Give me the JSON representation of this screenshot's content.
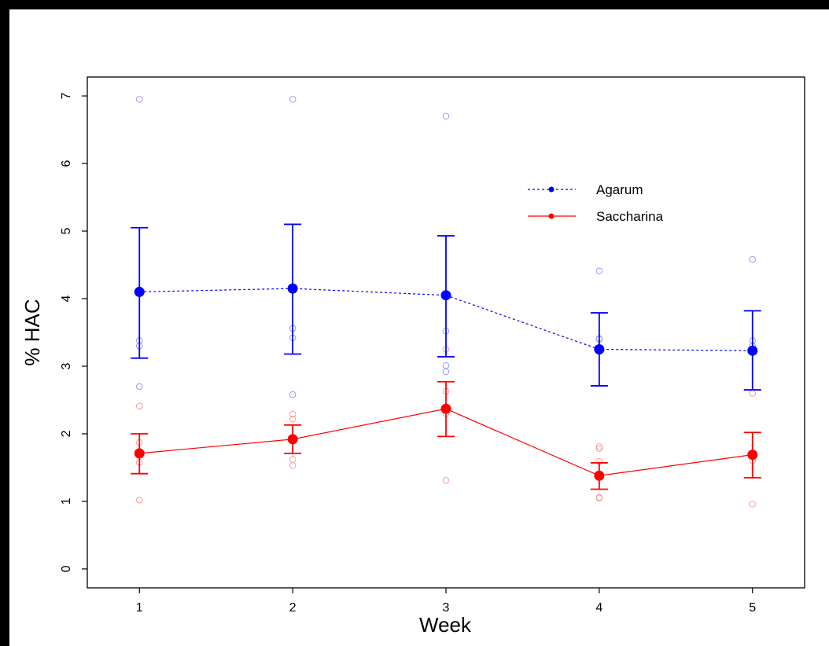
{
  "chart_data": {
    "type": "line",
    "title": "",
    "xlabel": "Week",
    "ylabel": "% HAC",
    "x_ticks": [
      "1",
      "2",
      "3",
      "4",
      "5"
    ],
    "y_ticks": [
      "0",
      "1",
      "2",
      "3",
      "4",
      "5",
      "6",
      "7"
    ],
    "xlim": [
      0.66,
      5.34
    ],
    "ylim": [
      -0.28,
      7.28
    ],
    "legend_position": "top-right",
    "series": [
      {
        "name": "Agarum",
        "color": "#0000ff",
        "point_color": "#9999ff",
        "line_style": "dashed",
        "x": [
          1,
          2,
          3,
          4,
          5
        ],
        "mean": [
          4.1,
          4.15,
          4.05,
          3.25,
          3.23
        ],
        "err_low": [
          3.12,
          3.18,
          3.14,
          2.71,
          2.65
        ],
        "err_high": [
          5.05,
          5.1,
          4.93,
          3.79,
          3.82
        ],
        "points": [
          [
            1,
            6.95
          ],
          [
            1,
            3.38
          ],
          [
            1,
            3.3
          ],
          [
            1,
            2.7
          ],
          [
            2,
            6.95
          ],
          [
            2,
            3.56
          ],
          [
            2,
            3.42
          ],
          [
            2,
            2.58
          ],
          [
            3,
            6.7
          ],
          [
            3,
            3.52
          ],
          [
            3,
            3.01
          ],
          [
            3,
            2.92
          ],
          [
            4,
            4.41
          ],
          [
            4,
            3.41
          ],
          [
            4,
            3.4
          ],
          [
            4,
            3.22
          ],
          [
            5,
            4.58
          ],
          [
            5,
            3.38
          ],
          [
            5,
            3.3
          ],
          [
            5,
            3.24
          ]
        ]
      },
      {
        "name": "Saccharina",
        "color": "#ff0000",
        "point_color": "#ff9999",
        "line_style": "solid",
        "x": [
          1,
          2,
          3,
          4,
          5
        ],
        "mean": [
          1.71,
          1.92,
          2.37,
          1.38,
          1.69
        ],
        "err_low": [
          1.41,
          1.71,
          1.96,
          1.18,
          1.35
        ],
        "err_high": [
          2.0,
          2.13,
          2.77,
          1.57,
          2.02
        ],
        "points": [
          [
            1,
            2.41
          ],
          [
            1,
            1.87
          ],
          [
            1,
            1.58
          ],
          [
            1,
            1.02
          ],
          [
            2,
            2.29
          ],
          [
            2,
            2.22
          ],
          [
            2,
            1.62
          ],
          [
            2,
            1.53
          ],
          [
            3,
            3.25
          ],
          [
            3,
            2.63
          ],
          [
            3,
            2.3
          ],
          [
            3,
            1.31
          ],
          [
            4,
            1.81
          ],
          [
            4,
            1.78
          ],
          [
            4,
            1.59
          ],
          [
            4,
            1.06
          ],
          [
            4,
            1.05
          ],
          [
            5,
            2.6
          ],
          [
            5,
            1.68
          ],
          [
            5,
            1.6
          ],
          [
            5,
            0.96
          ]
        ]
      }
    ]
  }
}
